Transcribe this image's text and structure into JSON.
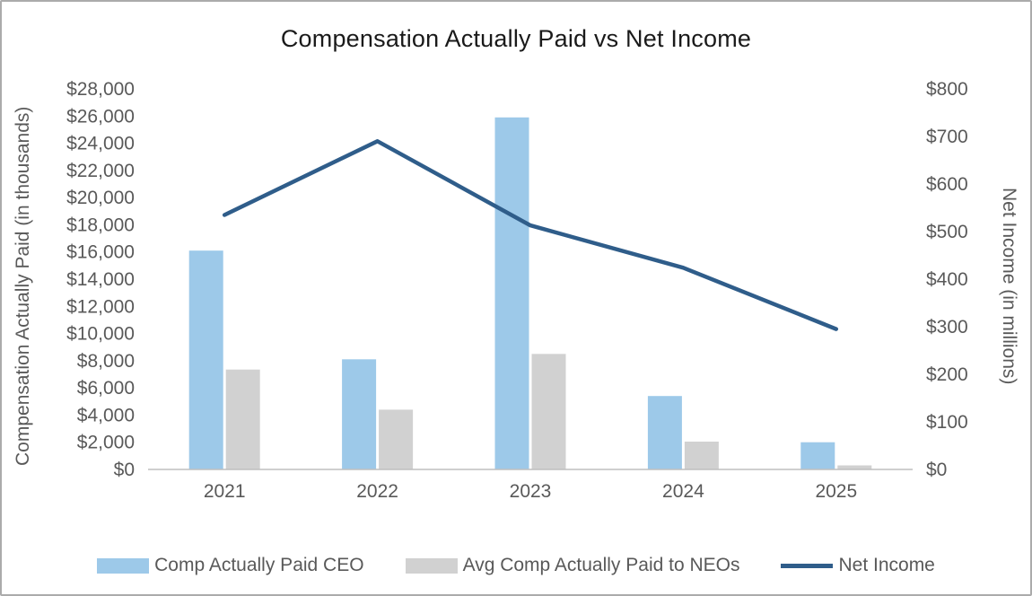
{
  "chart_data": {
    "type": "combo-bar-line",
    "title": "Compensation Actually Paid vs Net Income",
    "categories": [
      "2021",
      "2022",
      "2023",
      "2024",
      "2025"
    ],
    "series": [
      {
        "name": "Comp Actually Paid CEO",
        "type": "bar",
        "axis": "left",
        "color": "#9DC9E9",
        "values": [
          16100,
          8100,
          25900,
          5400,
          2000
        ]
      },
      {
        "name": "Avg Comp Actually Paid to NEOs",
        "type": "bar",
        "axis": "left",
        "color": "#D1D1D1",
        "values": [
          7350,
          4400,
          8500,
          2050,
          300
        ]
      },
      {
        "name": "Net Income",
        "type": "line",
        "axis": "right",
        "color": "#2F5D8A",
        "values": [
          535,
          690,
          513,
          424,
          295
        ]
      }
    ],
    "left_axis": {
      "label": "Compensation Actually Paid (in thousands)",
      "min": 0,
      "max": 28000,
      "step": 2000,
      "tick_prefix": "$"
    },
    "right_axis": {
      "label": "Net Income (in millions)",
      "min": 0,
      "max": 800,
      "step": 100,
      "tick_prefix": "$"
    },
    "legend_position": "bottom",
    "gridlines": false,
    "text_color": "#595959",
    "axis_line_color": "#BFBFBF"
  }
}
